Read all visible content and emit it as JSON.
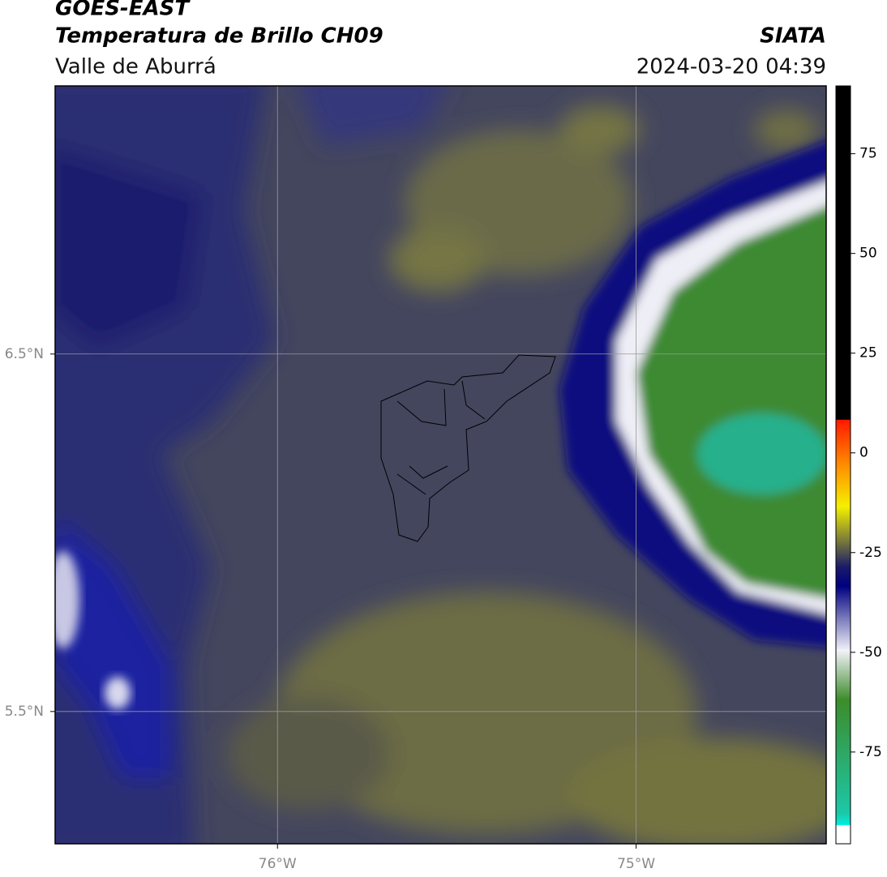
{
  "header": {
    "title": "GOES-EAST",
    "subtitle": "Temperatura de Brillo CH09",
    "region": "Valle de Aburrá",
    "source": "SIATA",
    "datetime": "2024-03-20 04:39"
  },
  "map": {
    "xlim": [
      -76.62,
      -74.47
    ],
    "ylim": [
      5.13,
      7.25
    ],
    "xticks": [
      {
        "value": -76,
        "label": "76°W"
      },
      {
        "value": -75,
        "label": "75°W"
      }
    ],
    "yticks": [
      {
        "value": 6.5,
        "label": "6.5°N"
      },
      {
        "value": 5.5,
        "label": "5.5°N"
      }
    ],
    "grid": true
  },
  "colorbar": {
    "lim": [
      -98,
      92
    ],
    "ticks": [
      75,
      50,
      25,
      0,
      -25,
      -50,
      -75
    ]
  }
}
